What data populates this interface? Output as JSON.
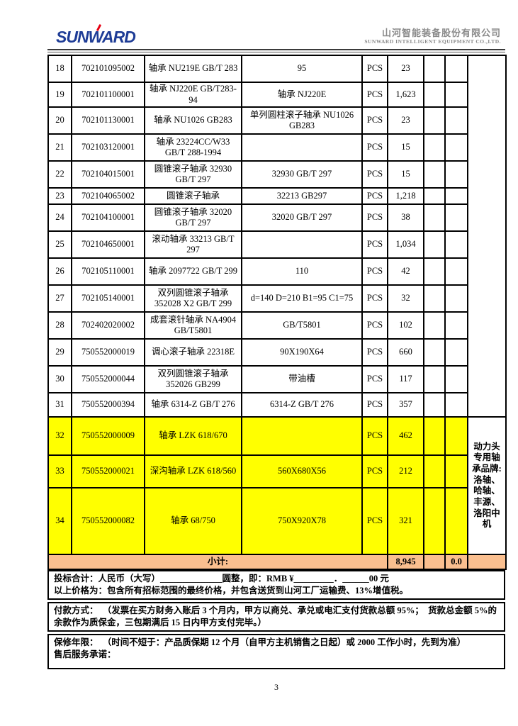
{
  "header": {
    "logo_text": "SUNWARD",
    "company_cn": "山河智能装备股份有限公司",
    "company_en": "SUNWARD INTELLIGENT EQUIPMENT CO.,LTD."
  },
  "table": {
    "rows": [
      {
        "no": "18",
        "code": "702101095002",
        "name": "轴承 NU219E GB/T 283",
        "spec": "95",
        "unit": "PCS",
        "qty": "23",
        "highlight": false
      },
      {
        "no": "19",
        "code": "702101100001",
        "name": "轴承 NJ220E GB/T283-94",
        "spec": "轴承 NJ220E",
        "unit": "PCS",
        "qty": "1,623",
        "highlight": false
      },
      {
        "no": "20",
        "code": "702101130001",
        "name": "轴承 NU1026 GB283",
        "spec": "单列圆柱滚子轴承 NU1026 GB283",
        "unit": "PCS",
        "qty": "23",
        "highlight": false
      },
      {
        "no": "21",
        "code": "702103120001",
        "name": "轴承 23224CC/W33 GB/T 288-1994",
        "spec": "",
        "unit": "PCS",
        "qty": "15",
        "highlight": false
      },
      {
        "no": "22",
        "code": "702104015001",
        "name": "圆锥滚子轴承 32930 GB/T 297",
        "spec": "32930 GB/T 297",
        "unit": "PCS",
        "qty": "15",
        "highlight": false
      },
      {
        "no": "23",
        "code": "702104065002",
        "name": "圆锥滚子轴承",
        "spec": "32213 GB297",
        "unit": "PCS",
        "qty": "1,218",
        "highlight": false
      },
      {
        "no": "24",
        "code": "702104100001",
        "name": "圆锥滚子轴承 32020 GB/T 297",
        "spec": "32020 GB/T 297",
        "unit": "PCS",
        "qty": "38",
        "highlight": false
      },
      {
        "no": "25",
        "code": "702104650001",
        "name": "滚动轴承 33213 GB/T 297",
        "spec": "",
        "unit": "PCS",
        "qty": "1,034",
        "highlight": false
      },
      {
        "no": "26",
        "code": "702105110001",
        "name": "轴承 2097722 GB/T 299",
        "spec": "110",
        "unit": "PCS",
        "qty": "42",
        "highlight": false
      },
      {
        "no": "27",
        "code": "702105140001",
        "name": "双列圆锥滚子轴承 352028 X2 GB/T 299",
        "spec": "d=140 D=210 B1=95 C1=75",
        "unit": "PCS",
        "qty": "32",
        "highlight": false
      },
      {
        "no": "28",
        "code": "702402020002",
        "name": "成套滚针轴承 NA4904 GB/T5801",
        "spec": "GB/T5801",
        "unit": "PCS",
        "qty": "102",
        "highlight": false
      },
      {
        "no": "29",
        "code": "750552000019",
        "name": "调心滚子轴承 22318E",
        "spec": "90X190X64",
        "unit": "PCS",
        "qty": "660",
        "highlight": false
      },
      {
        "no": "30",
        "code": "750552000044",
        "name": "双列圆锥滚子轴承 352026 GB299",
        "spec": "带油槽",
        "unit": "PCS",
        "qty": "117",
        "highlight": false
      },
      {
        "no": "31",
        "code": "750552000394",
        "name": "轴承 6314-Z GB/T 276",
        "spec": "6314-Z GB/T 276",
        "unit": "PCS",
        "qty": "357",
        "highlight": false
      },
      {
        "no": "32",
        "code": "750552000009",
        "name": "轴承 LZK 618/670",
        "spec": "",
        "unit": "PCS",
        "qty": "462",
        "highlight": true
      },
      {
        "no": "33",
        "code": "750552000021",
        "name": "深沟轴承 LZK 618/560",
        "spec": "560X680X56",
        "unit": "PCS",
        "qty": "212",
        "highlight": true
      },
      {
        "no": "34",
        "code": "750552000082",
        "name": "轴承 68/750",
        "spec": "750X920X78",
        "unit": "PCS",
        "qty": "321",
        "highlight": true
      }
    ],
    "brand_note": "动力头专用轴承品牌: 洛轴、哈轴、丰源、洛阳中机",
    "subtotal": {
      "label": "小计:",
      "qty": "8,945",
      "blank": "",
      "amount": "0.0"
    }
  },
  "footer": {
    "bid_total_line": "投标合计：人民币（大写）______________圆整，即：RMB ¥_________．______00 元",
    "price_note_line": "以上价格为：包含所有招标范围的最终价格，并包含送货到山河工厂运输费、13%增值税。",
    "payment_line": "付款方式：  （发票在买方财务入账后 3 个月内，甲方以商兑、承兑或电汇支付货款总额 95%；  货款总金额 5%的余款作为质保金，三包期满后 15 日内甲方支付完毕。）",
    "warranty_line": "保修年限：  （时间不短于：产品质保期 12 个月（自甲方主机销售之日起）或 2000 工作小时，先到为准）",
    "service_line": "售后服务承诺："
  },
  "page_number": "3",
  "colors": {
    "highlight_yellow": "#FFFF00",
    "subtotal_orange": "#FABF8F",
    "logo_blue": "#1E3C96",
    "logo_red": "#E60012",
    "company_gray": "#8A8A8A"
  }
}
